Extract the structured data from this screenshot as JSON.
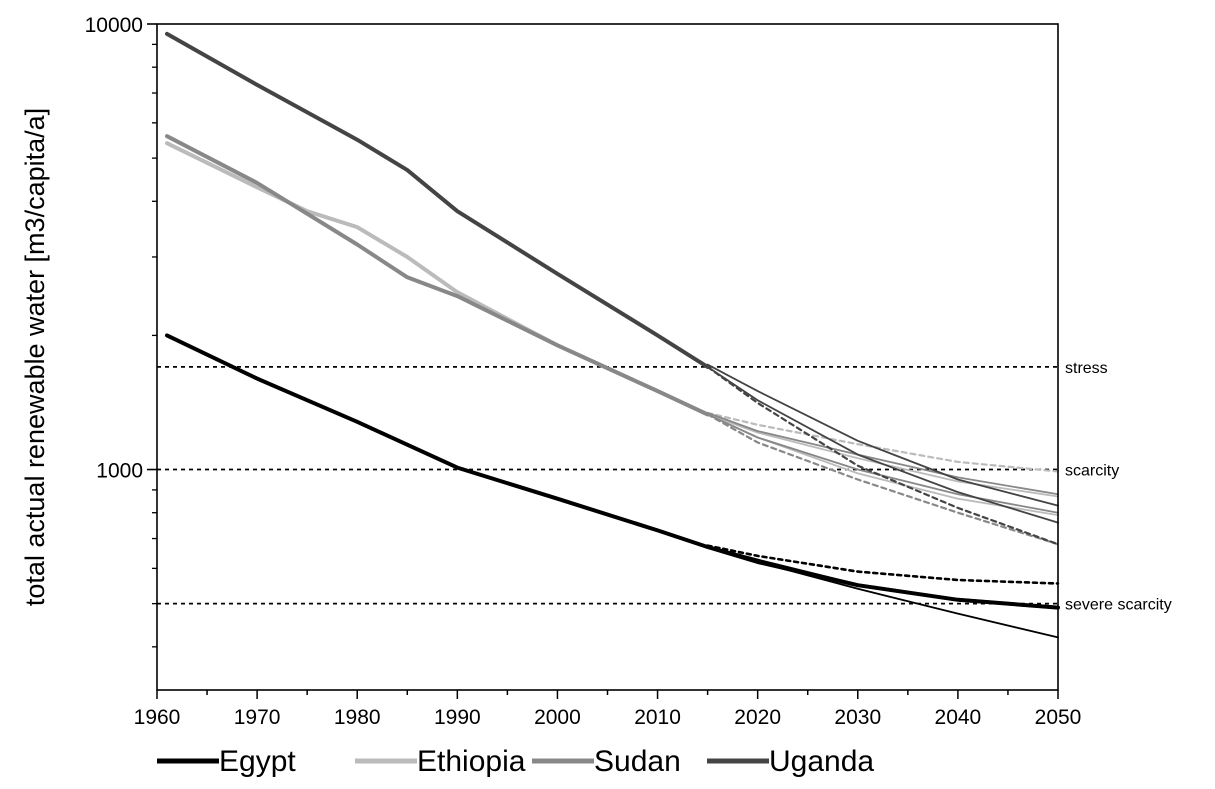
{
  "chart_data": {
    "type": "line",
    "title": "",
    "title_fragment": "",
    "xlabel": "",
    "ylabel": "total actual renewable water [m3/capita/a]",
    "xlim": [
      1960,
      2050
    ],
    "ylim": [
      320,
      10000
    ],
    "y_scale": "log",
    "x_ticks": [
      1960,
      1970,
      1980,
      1990,
      2000,
      2010,
      2020,
      2030,
      2040,
      2050
    ],
    "y_tick_labels": [
      1000,
      10000
    ],
    "grid": false,
    "legend_position": "bottom",
    "colors": {
      "Egypt": "#000000",
      "Ethiopia": "#bbbbbb",
      "Sudan": "#888888",
      "Uganda": "#444444"
    },
    "reference_lines": [
      {
        "label": "stress",
        "y": 1700
      },
      {
        "label": "scarcity",
        "y": 1000
      },
      {
        "label": "severe scarcity",
        "y": 500
      }
    ],
    "series": [
      {
        "name": "Egypt",
        "x": [
          1961,
          1970,
          1980,
          1990,
          2000,
          2010,
          2015,
          2020,
          2030,
          2040,
          2050
        ],
        "values": [
          2000,
          1600,
          1280,
          1010,
          860,
          730,
          670,
          620,
          550,
          510,
          490
        ]
      },
      {
        "name": "Ethiopia",
        "x": [
          1961,
          1970,
          1975,
          1980,
          1985,
          1990,
          2000,
          2010,
          2015
        ],
        "values": [
          5400,
          4300,
          3800,
          3500,
          3000,
          2500,
          1900,
          1500,
          1330
        ]
      },
      {
        "name": "Sudan",
        "x": [
          1961,
          1970,
          1980,
          1985,
          1990,
          2000,
          2010,
          2015
        ],
        "values": [
          5600,
          4400,
          3200,
          2700,
          2450,
          1900,
          1500,
          1330
        ]
      },
      {
        "name": "Uganda",
        "x": [
          1961,
          1970,
          1980,
          1985,
          1990,
          2000,
          2010,
          2015
        ],
        "values": [
          9500,
          7300,
          5500,
          4700,
          3800,
          2750,
          2000,
          1700
        ]
      }
    ],
    "projections": [
      {
        "series": "Egypt",
        "x": [
          2015,
          2020,
          2030,
          2040,
          2050
        ],
        "values": [
          670,
          620,
          540,
          475,
          420
        ]
      },
      {
        "series": "Egypt",
        "x": [
          2015,
          2020,
          2030,
          2040,
          2050
        ],
        "values": [
          675,
          640,
          590,
          565,
          555
        ]
      },
      {
        "series": "Ethiopia",
        "x": [
          2015,
          2020,
          2030,
          2040,
          2050
        ],
        "values": [
          1330,
          1210,
          1060,
          940,
          870
        ]
      },
      {
        "series": "Ethiopia",
        "x": [
          2015,
          2020,
          2030,
          2040,
          2050
        ],
        "values": [
          1340,
          1260,
          1140,
          1040,
          990
        ]
      },
      {
        "series": "Ethiopia",
        "x": [
          2015,
          2020,
          2030,
          2040,
          2050
        ],
        "values": [
          1330,
          1180,
          980,
          860,
          790
        ]
      },
      {
        "series": "Sudan",
        "x": [
          2015,
          2020,
          2030,
          2040,
          2050
        ],
        "values": [
          1330,
          1180,
          1000,
          880,
          800
        ]
      },
      {
        "series": "Sudan",
        "x": [
          2015,
          2020,
          2030,
          2040,
          2050
        ],
        "values": [
          1330,
          1150,
          950,
          800,
          680
        ]
      },
      {
        "series": "Sudan",
        "x": [
          2015,
          2020,
          2030,
          2040,
          2050
        ],
        "values": [
          1340,
          1220,
          1080,
          960,
          880
        ]
      },
      {
        "series": "Uganda",
        "x": [
          2015,
          2020,
          2030,
          2040,
          2050
        ],
        "values": [
          1700,
          1430,
          1080,
          890,
          760
        ]
      },
      {
        "series": "Uganda",
        "x": [
          2015,
          2020,
          2030,
          2040,
          2050
        ],
        "values": [
          1700,
          1410,
          1020,
          820,
          680
        ]
      },
      {
        "series": "Uganda",
        "x": [
          2015,
          2020,
          2030,
          2040,
          2050
        ],
        "values": [
          1720,
          1500,
          1160,
          950,
          830
        ]
      }
    ]
  }
}
